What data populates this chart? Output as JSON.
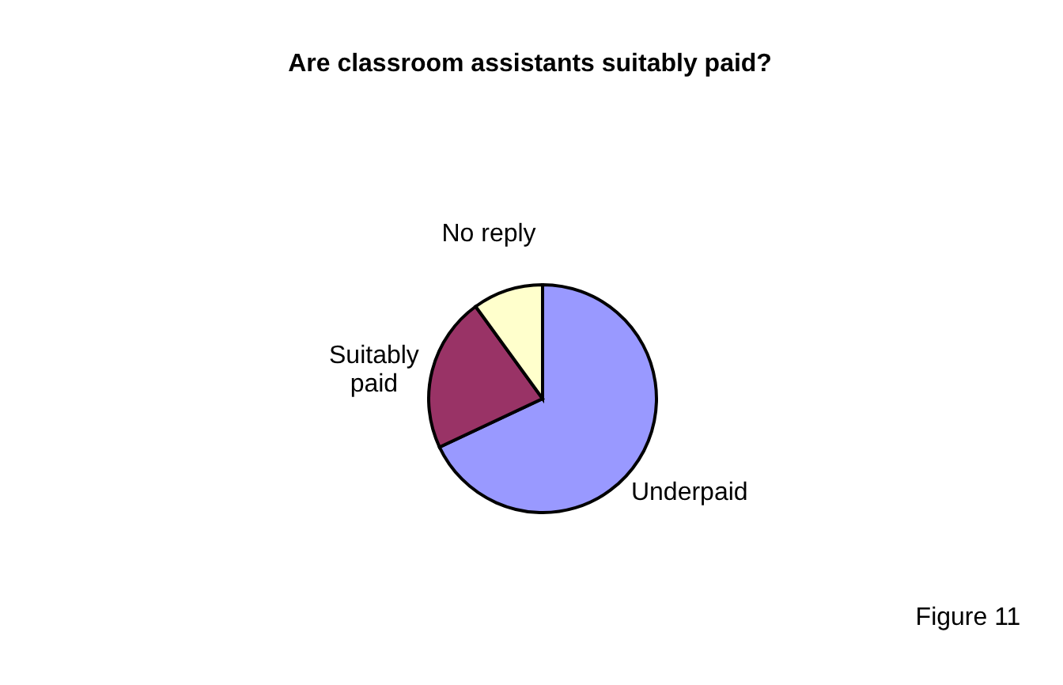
{
  "chart_data": {
    "type": "pie",
    "title": "Are classroom assistants suitably paid?",
    "categories": [
      "Underpaid",
      "Suitably paid",
      "No reply"
    ],
    "values": [
      68,
      22,
      10
    ],
    "colors": [
      "#9999ff",
      "#993366",
      "#ffffcc"
    ],
    "annotations": [
      "Figure 11"
    ]
  }
}
